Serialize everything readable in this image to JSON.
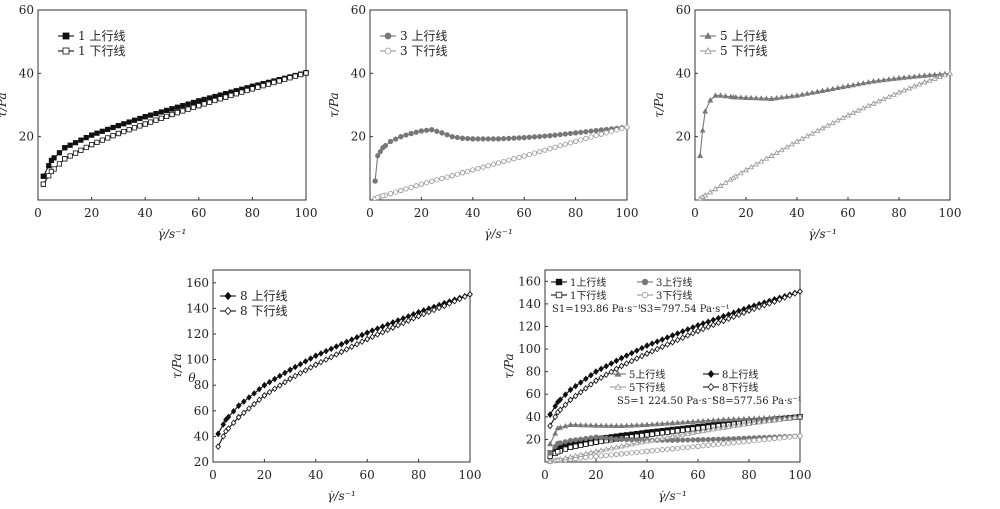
{
  "charts": [
    {
      "type": "line",
      "xlim": [
        0,
        100
      ],
      "ylim": [
        0,
        60
      ],
      "xticks": [
        "0",
        "20",
        "40",
        "60",
        "80",
        "100"
      ],
      "yticks": [
        "",
        "20",
        "40",
        "60"
      ],
      "xlabel": "γ̇/s⁻¹",
      "ylabel": "τ/Pa",
      "legend": [
        "1 上行线",
        "1 下行线"
      ]
    },
    {
      "type": "line",
      "xlim": [
        0,
        100
      ],
      "ylim": [
        0,
        60
      ],
      "xticks": [
        "0",
        "20",
        "40",
        "60",
        "80",
        "100"
      ],
      "yticks": [
        "",
        "20",
        "40",
        "60"
      ],
      "xlabel": "γ̇/s⁻¹",
      "ylabel": "τ/Pa",
      "legend": [
        "3 上行线",
        "3 下行线"
      ]
    },
    {
      "type": "line",
      "xlim": [
        0,
        100
      ],
      "ylim": [
        0,
        60
      ],
      "xticks": [
        "0",
        "20",
        "40",
        "60",
        "80",
        "100"
      ],
      "yticks": [
        "",
        "20",
        "40",
        "60"
      ],
      "xlabel": "γ̇/s⁻¹",
      "ylabel": "τ/Pa",
      "legend": [
        "5 上行线",
        "5 下行线"
      ]
    },
    {
      "type": "line",
      "xlim": [
        0,
        100
      ],
      "ylim": [
        20,
        170
      ],
      "xticks": [
        "0",
        "20",
        "40",
        "60",
        "80",
        "100"
      ],
      "yticks": [
        "20",
        "40",
        "60",
        "80",
        "100",
        "120",
        "140",
        "160"
      ],
      "xlabel": "γ̇/s⁻¹",
      "ylabel": "τ/Pa",
      "ylabel2": "θ",
      "legend": [
        "8 上行线",
        "8 下行线"
      ]
    },
    {
      "type": "line",
      "xlim": [
        0,
        100
      ],
      "ylim": [
        0,
        170
      ],
      "xticks": [
        "0",
        "20",
        "40",
        "60",
        "80",
        "100"
      ],
      "yticks": [
        "20",
        "40",
        "60",
        "80",
        "100",
        "120",
        "140",
        "160"
      ],
      "xlabel": "γ̇/s⁻¹",
      "ylabel": "τ/Pa",
      "legend": [
        "1上行线",
        "1下行线",
        "3上行线",
        "3下行线",
        "5上行线",
        "5下行线",
        "8上行线",
        "8下行线"
      ],
      "annotations": [
        "S1=193.86 Pa·s⁻¹",
        "S3=797.54 Pa·s⁻¹",
        "S5=1 224.50 Pa·s⁻¹",
        "S8=577.56 Pa·s⁻¹"
      ]
    }
  ],
  "chart_data": [
    {
      "type": "line",
      "xlabel": "γ̇/s⁻¹",
      "ylabel": "τ/Pa",
      "xlim": [
        0,
        100
      ],
      "ylim": [
        0,
        60
      ],
      "x": [
        2,
        5,
        10,
        20,
        30,
        40,
        50,
        60,
        70,
        80,
        90,
        100
      ],
      "series": [
        {
          "name": "1 上行线",
          "values": [
            7.5,
            12.5,
            16.5,
            20.5,
            23.5,
            26.3,
            28.8,
            31.3,
            33.6,
            35.9,
            38.0,
            40.2
          ]
        },
        {
          "name": "1 下行线",
          "values": [
            5.0,
            9.0,
            13.0,
            17.5,
            21.0,
            24.0,
            27.0,
            29.8,
            32.5,
            35.1,
            37.6,
            40.1
          ]
        }
      ]
    },
    {
      "type": "line",
      "xlabel": "γ̇/s⁻¹",
      "ylabel": "τ/Pa",
      "xlim": [
        0,
        100
      ],
      "ylim": [
        0,
        60
      ],
      "x": [
        2,
        3,
        5,
        8,
        12,
        16,
        20,
        24,
        28,
        32,
        36,
        40,
        50,
        60,
        70,
        80,
        90,
        100
      ],
      "series": [
        {
          "name": "3 上行线",
          "values": [
            6,
            14,
            16.5,
            18.5,
            20,
            21,
            21.8,
            22.2,
            21.2,
            20,
            19.5,
            19.3,
            19.3,
            19.7,
            20.3,
            21.2,
            22.1,
            23
          ]
        },
        {
          "name": "3 下行线",
          "values": [
            0.5,
            0.8,
            1.3,
            2.0,
            3.0,
            4.0,
            5.0,
            5.9,
            6.8,
            7.7,
            8.6,
            9.5,
            11.7,
            13.9,
            16.2,
            18.5,
            20.8,
            23
          ]
        }
      ]
    },
    {
      "type": "line",
      "xlabel": "γ̇/s⁻¹",
      "ylabel": "τ/Pa",
      "xlim": [
        0,
        100
      ],
      "ylim": [
        0,
        60
      ],
      "x": [
        2,
        3,
        4,
        6,
        8,
        10,
        15,
        20,
        30,
        40,
        50,
        60,
        70,
        80,
        90,
        100
      ],
      "series": [
        {
          "name": "5 上行线",
          "values": [
            14,
            22,
            28,
            31.5,
            33,
            33,
            32.5,
            32.3,
            32,
            33,
            34.5,
            36,
            37.5,
            38.5,
            39.3,
            40
          ]
        },
        {
          "name": "5 下行线",
          "values": [
            0.5,
            1.0,
            1.5,
            2.5,
            3.5,
            4.5,
            7,
            9.5,
            14,
            18.5,
            22.7,
            26.8,
            30.5,
            34,
            37.2,
            40
          ]
        }
      ]
    },
    {
      "type": "line",
      "xlabel": "γ̇/s⁻¹",
      "ylabel": "τ/Pa",
      "xlim": [
        0,
        100
      ],
      "ylim": [
        20,
        170
      ],
      "x": [
        2,
        5,
        10,
        20,
        30,
        40,
        50,
        60,
        70,
        80,
        90,
        100
      ],
      "series": [
        {
          "name": "8 上行线",
          "values": [
            42,
            53,
            64,
            80,
            92,
            103,
            112,
            121,
            129,
            137,
            144,
            151
          ]
        },
        {
          "name": "8 下行线",
          "values": [
            32,
            44,
            55,
            72,
            85,
            96,
            106,
            116,
            125,
            134,
            142,
            151
          ]
        }
      ]
    },
    {
      "type": "line",
      "xlabel": "γ̇/s⁻¹",
      "ylabel": "τ/Pa",
      "xlim": [
        0,
        100
      ],
      "ylim": [
        0,
        170
      ],
      "x": [
        2,
        5,
        10,
        20,
        30,
        40,
        50,
        60,
        70,
        80,
        90,
        100
      ],
      "series": [
        {
          "name": "1上行线",
          "values": [
            8,
            12.5,
            16.5,
            20.5,
            23.5,
            26.3,
            28.8,
            31.3,
            33.6,
            35.9,
            38,
            40
          ]
        },
        {
          "name": "1下行线",
          "values": [
            5,
            9,
            13,
            17.5,
            21,
            24,
            27,
            29.8,
            32.5,
            35.1,
            37.6,
            40
          ]
        },
        {
          "name": "3上行线",
          "values": [
            8,
            16.5,
            19,
            22,
            20,
            19.3,
            19.3,
            19.7,
            20.3,
            21.2,
            22.1,
            23
          ]
        },
        {
          "name": "3下行线",
          "values": [
            0.5,
            1.3,
            2.5,
            5,
            7.2,
            9.5,
            11.7,
            13.9,
            16.2,
            18.5,
            20.8,
            23
          ]
        },
        {
          "name": "5上行线",
          "values": [
            16,
            30,
            33,
            32.3,
            32,
            33,
            34.5,
            36,
            37.5,
            38.5,
            39.3,
            40
          ]
        },
        {
          "name": "5下行线",
          "values": [
            0.5,
            2,
            4.5,
            9.5,
            14,
            18.5,
            22.7,
            26.8,
            30.5,
            34,
            37.2,
            40
          ]
        },
        {
          "name": "8上行线",
          "values": [
            42,
            53,
            64,
            80,
            92,
            103,
            112,
            121,
            129,
            137,
            144,
            151
          ]
        },
        {
          "name": "8下行线",
          "values": [
            32,
            44,
            55,
            72,
            85,
            96,
            106,
            116,
            125,
            134,
            142,
            151
          ]
        }
      ]
    }
  ]
}
